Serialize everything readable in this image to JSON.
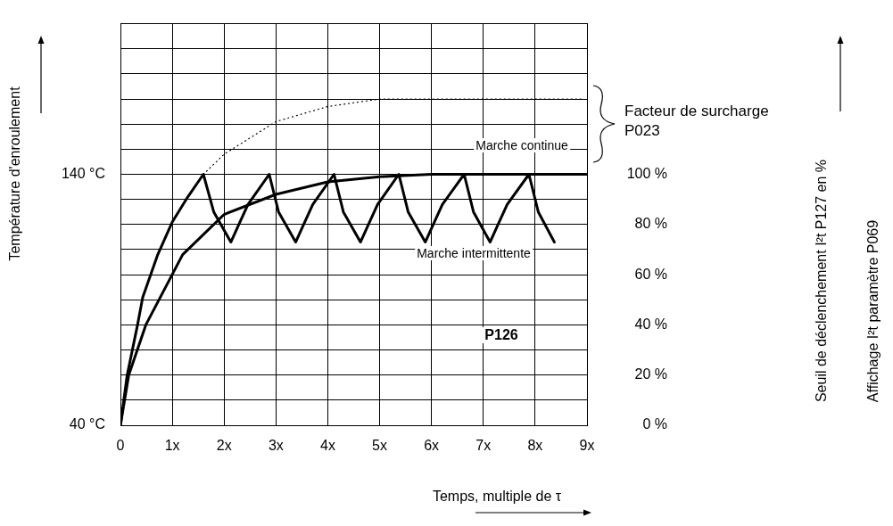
{
  "chart_data": {
    "type": "line",
    "xlabel": "Temps, multiple de τ",
    "ylabel": "Température d'enroulement",
    "xlim": [
      0,
      9
    ],
    "xticks": [
      {
        "value": 0,
        "label": "0"
      },
      {
        "value": 1,
        "label": "1x"
      },
      {
        "value": 2,
        "label": "2x"
      },
      {
        "value": 3,
        "label": "3x"
      },
      {
        "value": 4,
        "label": "4x"
      },
      {
        "value": 5,
        "label": "5x"
      },
      {
        "value": 6,
        "label": "6x"
      },
      {
        "value": 7,
        "label": "7x"
      },
      {
        "value": 8,
        "label": "8x"
      },
      {
        "value": 9,
        "label": "9x"
      }
    ],
    "ylim": [
      40,
      200
    ],
    "yticks": [
      {
        "value": 40,
        "label": "40 °C"
      },
      {
        "value": 50,
        "label": null
      },
      {
        "value": 60,
        "label": null
      },
      {
        "value": 70,
        "label": null
      },
      {
        "value": 80,
        "label": null
      },
      {
        "value": 90,
        "label": null
      },
      {
        "value": 100,
        "label": null
      },
      {
        "value": 110,
        "label": null
      },
      {
        "value": 120,
        "label": null
      },
      {
        "value": 130,
        "label": null
      },
      {
        "value": 140,
        "label": "140 °C"
      },
      {
        "value": 150,
        "label": null
      },
      {
        "value": 160,
        "label": null
      },
      {
        "value": 170,
        "label": null
      },
      {
        "value": 180,
        "label": null
      },
      {
        "value": 190,
        "label": null
      },
      {
        "value": 200,
        "label": null
      }
    ],
    "y2lim": [
      0,
      160
    ],
    "y2ticks": [
      {
        "value": 0,
        "label": "0 %"
      },
      {
        "value": 20,
        "label": "20 %"
      },
      {
        "value": 40,
        "label": "40 %"
      },
      {
        "value": 60,
        "label": "60 %"
      },
      {
        "value": 80,
        "label": "80 %"
      },
      {
        "value": 100,
        "label": "100 %"
      }
    ],
    "grid": true,
    "marker": "none",
    "series": [
      {
        "color": "#000000",
        "line_style": "solid",
        "axis": "y2",
        "x": [
          0,
          0.13,
          0.33,
          0.43,
          0.72,
          1.0,
          1.3,
          1.6,
          1.8,
          2.13,
          2.46,
          2.87,
          3.05,
          3.38,
          3.71,
          4.12,
          4.3,
          4.63,
          4.96,
          5.37,
          5.55,
          5.88,
          6.21,
          6.63,
          6.81,
          7.13,
          7.46,
          7.88,
          8.06,
          8.37
        ],
        "values": [
          0,
          20,
          40,
          51,
          68,
          81,
          91,
          100,
          85,
          73,
          88,
          100,
          85,
          73,
          88,
          100,
          85,
          73,
          88,
          100,
          85,
          73,
          88,
          100,
          85,
          73,
          88,
          100,
          85,
          73
        ]
      },
      {
        "color": "#000000",
        "line_style": "solid",
        "axis": "y2",
        "x": [
          0,
          0.16,
          0.49,
          1.2,
          2,
          3,
          4,
          5,
          6,
          7,
          8,
          9
        ],
        "values": [
          0,
          20,
          40,
          68,
          84,
          92,
          97,
          99,
          100,
          100,
          100,
          100
        ]
      },
      {
        "color": "#000000",
        "line_style": "dotted",
        "axis": "y2",
        "x": [
          1.6,
          2,
          3,
          4,
          5,
          6,
          7,
          8,
          8.9
        ],
        "values": [
          100,
          108,
          121,
          127,
          130,
          130,
          130,
          130,
          130
        ]
      }
    ],
    "annotations": [
      "Marche continue",
      "Marche intermittente",
      "P126",
      "Facteur de surcharge P023",
      "Seuil de déclenchement I²t P127 en %",
      "Affichage I²t paramètre P069"
    ]
  }
}
